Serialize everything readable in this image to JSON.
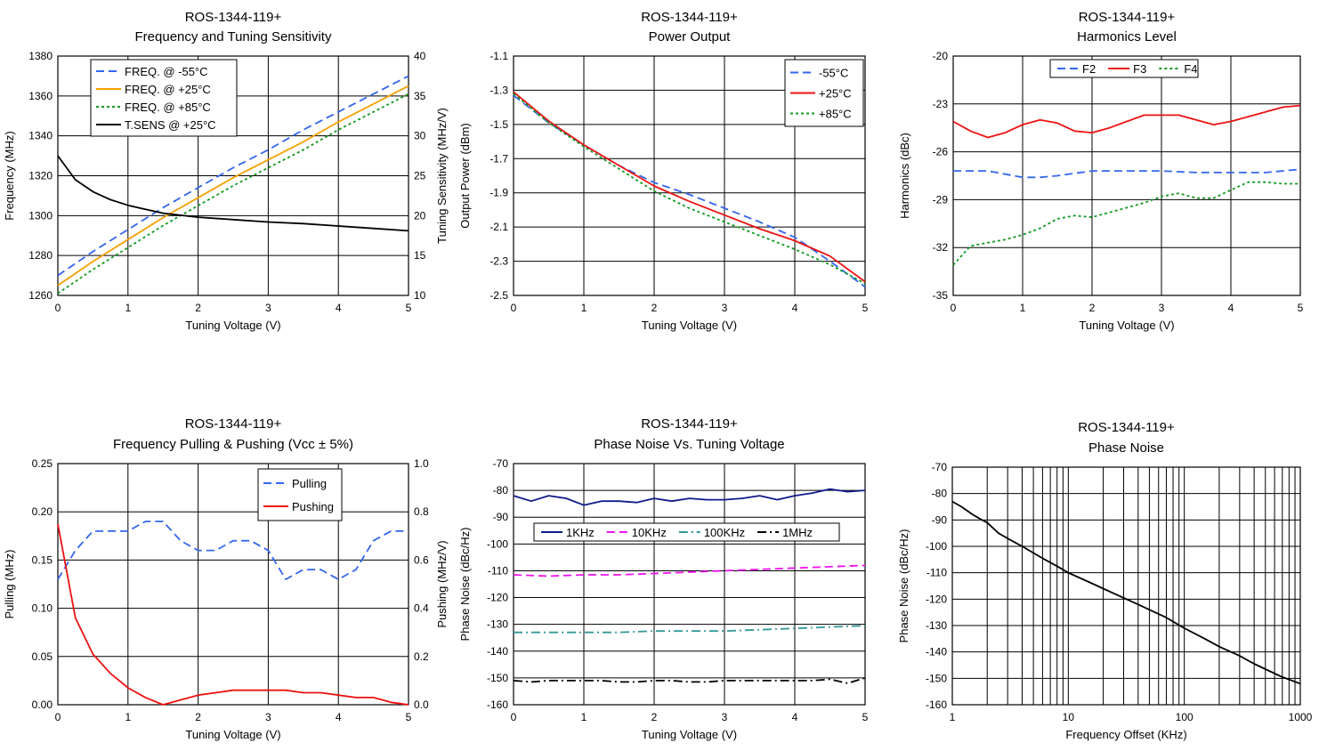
{
  "chart_data": [
    {
      "type": "line",
      "title": "ROS-1344-119+",
      "subtitle": "Frequency and Tuning Sensitivity",
      "xlabel": "Tuning Voltage (V)",
      "ylabel": "Frequency (MHz)",
      "y2label": "Tuning Sensitivity (MHz/V)",
      "xlim": [
        0,
        5
      ],
      "xticks": [
        0,
        1,
        2,
        3,
        4,
        5
      ],
      "ylim": [
        1260,
        1380
      ],
      "yticks": [
        1260,
        1280,
        1300,
        1320,
        1340,
        1360,
        1380
      ],
      "y2lim": [
        10,
        40
      ],
      "y2ticks": [
        10,
        15,
        20,
        25,
        30,
        35,
        40
      ],
      "grid": true,
      "legend_position": "top-left",
      "series": [
        {
          "name": "FREQ. @ -55°C",
          "color": "#3366ee",
          "dash": "dash",
          "axis": "left",
          "x": [
            0,
            0.5,
            1,
            1.5,
            2,
            2.5,
            3,
            3.5,
            4,
            4.5,
            5
          ],
          "y": [
            1270,
            1282,
            1293,
            1304,
            1314,
            1324,
            1333,
            1343,
            1352,
            1361,
            1370
          ]
        },
        {
          "name": "FREQ. @ +25°C",
          "color": "#f5a000",
          "dash": "solid",
          "axis": "left",
          "x": [
            0,
            0.5,
            1,
            1.5,
            2,
            2.5,
            3,
            3.5,
            4,
            4.5,
            5
          ],
          "y": [
            1265,
            1277,
            1288,
            1299,
            1309,
            1319,
            1328,
            1337,
            1347,
            1356,
            1365
          ]
        },
        {
          "name": "FREQ. @ +85°C",
          "color": "#119922",
          "dash": "dot",
          "axis": "left",
          "x": [
            0,
            0.5,
            1,
            1.5,
            2,
            2.5,
            3,
            3.5,
            4,
            4.5,
            5
          ],
          "y": [
            1261,
            1273,
            1284,
            1295,
            1305,
            1315,
            1324,
            1333,
            1343,
            1352,
            1361
          ]
        },
        {
          "name": "T.SENS @ +25°C",
          "color": "#000000",
          "dash": "solid",
          "axis": "right",
          "x": [
            0,
            0.25,
            0.5,
            0.75,
            1,
            1.25,
            1.5,
            2,
            2.5,
            3,
            3.5,
            4,
            4.5,
            5
          ],
          "y": [
            27.5,
            24.5,
            23,
            22,
            21.3,
            20.8,
            20.3,
            19.8,
            19.5,
            19.2,
            19.0,
            18.7,
            18.4,
            18.1
          ]
        }
      ]
    },
    {
      "type": "line",
      "title": "ROS-1344-119+",
      "subtitle": "Power Output",
      "xlabel": "Tuning Voltage (V)",
      "ylabel": "Output Power (dBm)",
      "xlim": [
        0,
        5
      ],
      "xticks": [
        0,
        1,
        2,
        3,
        4,
        5
      ],
      "ylim": [
        -2.5,
        -1.1
      ],
      "yticks": [
        -2.5,
        -2.3,
        -2.1,
        -1.9,
        -1.7,
        -1.5,
        -1.3,
        -1.1
      ],
      "yticklabels": [
        "-2.5",
        "-2.3",
        "-2.1",
        "-1.9",
        "-1.7",
        "-1.5",
        "-1.3",
        "-1.1"
      ],
      "grid": true,
      "legend_position": "top-right",
      "series": [
        {
          "name": "-55°C",
          "color": "#3366ee",
          "dash": "dash",
          "x": [
            0,
            0.5,
            1,
            1.5,
            2,
            2.5,
            3,
            3.5,
            4,
            4.5,
            5
          ],
          "y": [
            -1.33,
            -1.49,
            -1.62,
            -1.74,
            -1.84,
            -1.91,
            -1.99,
            -2.07,
            -2.16,
            -2.3,
            -2.45
          ]
        },
        {
          "name": "+25°C",
          "color": "#ee1111",
          "dash": "solid",
          "x": [
            0,
            0.5,
            1,
            1.5,
            2,
            2.5,
            3,
            3.5,
            4,
            4.5,
            5
          ],
          "y": [
            -1.31,
            -1.48,
            -1.62,
            -1.74,
            -1.86,
            -1.95,
            -2.03,
            -2.11,
            -2.18,
            -2.27,
            -2.42
          ]
        },
        {
          "name": "+85°C",
          "color": "#119922",
          "dash": "dot",
          "x": [
            0,
            0.5,
            1,
            1.5,
            2,
            2.5,
            3,
            3.5,
            4,
            4.5,
            5
          ],
          "y": [
            -1.32,
            -1.49,
            -1.63,
            -1.76,
            -1.89,
            -1.99,
            -2.07,
            -2.15,
            -2.23,
            -2.32,
            -2.43
          ]
        }
      ]
    },
    {
      "type": "line",
      "title": "ROS-1344-119+",
      "subtitle": "Harmonics Level",
      "xlabel": "Tuning Voltage (V)",
      "ylabel": "Harmonics (dBc)",
      "xlim": [
        0,
        5
      ],
      "xticks": [
        0,
        1,
        2,
        3,
        4,
        5
      ],
      "ylim": [
        -35,
        -20
      ],
      "yticks": [
        -35,
        -32,
        -29,
        -26,
        -23,
        -20
      ],
      "grid": true,
      "legend_position": "top",
      "series": [
        {
          "name": "F2",
          "color": "#3366ee",
          "dash": "dash",
          "x": [
            0,
            0.5,
            1,
            1.25,
            1.5,
            2,
            2.5,
            3,
            3.5,
            4,
            4.5,
            5
          ],
          "y": [
            -27.2,
            -27.2,
            -27.6,
            -27.6,
            -27.5,
            -27.2,
            -27.2,
            -27.2,
            -27.3,
            -27.3,
            -27.3,
            -27.1
          ]
        },
        {
          "name": "F3",
          "color": "#ee1111",
          "dash": "solid",
          "x": [
            0,
            0.25,
            0.5,
            0.75,
            1,
            1.25,
            1.5,
            1.75,
            2,
            2.25,
            2.5,
            2.75,
            3,
            3.25,
            3.5,
            3.75,
            4,
            4.25,
            4.5,
            4.75,
            5
          ],
          "y": [
            -24.1,
            -24.7,
            -25.1,
            -24.8,
            -24.3,
            -24.0,
            -24.2,
            -24.7,
            -24.8,
            -24.5,
            -24.1,
            -23.7,
            -23.7,
            -23.7,
            -24.0,
            -24.3,
            -24.1,
            -23.8,
            -23.5,
            -23.2,
            -23.1
          ]
        },
        {
          "name": "F4",
          "color": "#119922",
          "dash": "dot",
          "x": [
            0,
            0.25,
            0.5,
            0.75,
            1,
            1.25,
            1.5,
            1.75,
            2,
            2.25,
            2.5,
            2.75,
            3,
            3.25,
            3.5,
            3.75,
            4,
            4.25,
            4.5,
            4.75,
            5
          ],
          "y": [
            -33.1,
            -31.9,
            -31.7,
            -31.5,
            -31.2,
            -30.8,
            -30.2,
            -30.0,
            -30.1,
            -29.8,
            -29.5,
            -29.2,
            -28.8,
            -28.6,
            -28.9,
            -28.9,
            -28.4,
            -27.9,
            -27.9,
            -28.0,
            -28.0
          ]
        }
      ]
    },
    {
      "type": "line",
      "title": "ROS-1344-119+",
      "subtitle": "Frequency Pulling & Pushing (Vcc ± 5%)",
      "xlabel": "Tuning Voltage (V)",
      "ylabel": "Pulling (MHz)",
      "y2label": "Pushing (MHz/V)",
      "xlim": [
        0,
        5
      ],
      "xticks": [
        0,
        1,
        2,
        3,
        4,
        5
      ],
      "ylim": [
        0,
        0.25
      ],
      "yticks": [
        0,
        0.05,
        0.1,
        0.15,
        0.2,
        0.25
      ],
      "yticklabels": [
        "0.00",
        "0.05",
        "0.10",
        "0.15",
        "0.20",
        "0.25"
      ],
      "y2lim": [
        0,
        1.0
      ],
      "y2ticks": [
        0,
        0.2,
        0.4,
        0.6,
        0.8,
        1.0
      ],
      "y2ticklabels": [
        "0.0",
        "0.2",
        "0.4",
        "0.6",
        "0.8",
        "1.0"
      ],
      "grid": true,
      "legend_position": "top-right",
      "series": [
        {
          "name": "Pulling",
          "color": "#3366ee",
          "dash": "dash",
          "axis": "left",
          "x": [
            0,
            0.25,
            0.5,
            0.75,
            1,
            1.25,
            1.5,
            1.75,
            2,
            2.25,
            2.5,
            2.75,
            3,
            3.25,
            3.5,
            3.75,
            4,
            4.25,
            4.5,
            4.75,
            5
          ],
          "y": [
            0.13,
            0.16,
            0.18,
            0.18,
            0.18,
            0.19,
            0.19,
            0.17,
            0.16,
            0.16,
            0.17,
            0.17,
            0.16,
            0.13,
            0.14,
            0.14,
            0.13,
            0.14,
            0.17,
            0.18,
            0.18
          ]
        },
        {
          "name": "Pushing",
          "color": "#ee1111",
          "dash": "solid",
          "axis": "right",
          "x": [
            0,
            0.25,
            0.5,
            0.75,
            1,
            1.25,
            1.5,
            1.75,
            2,
            2.25,
            2.5,
            2.75,
            3,
            3.25,
            3.5,
            3.75,
            4,
            4.25,
            4.5,
            4.75,
            5
          ],
          "y": [
            0.75,
            0.36,
            0.21,
            0.13,
            0.07,
            0.03,
            0.0,
            0.02,
            0.04,
            0.05,
            0.06,
            0.06,
            0.06,
            0.06,
            0.05,
            0.05,
            0.04,
            0.03,
            0.03,
            0.01,
            0.0
          ]
        }
      ]
    },
    {
      "type": "line",
      "title": "ROS-1344-119+",
      "subtitle": "Phase Noise Vs. Tuning Voltage",
      "xlabel": "Tuning Voltage (V)",
      "ylabel": "Phase Noise (dBc/Hz)",
      "xlim": [
        0,
        5
      ],
      "xticks": [
        0,
        1,
        2,
        3,
        4,
        5
      ],
      "ylim": [
        -160,
        -70
      ],
      "yticks": [
        -160,
        -150,
        -140,
        -130,
        -120,
        -110,
        -100,
        -90,
        -80,
        -70
      ],
      "grid": true,
      "legend_position": "top",
      "series": [
        {
          "name": "1KHz",
          "color": "#111a8a",
          "dash": "solid",
          "x": [
            0,
            0.25,
            0.5,
            0.75,
            1,
            1.25,
            1.5,
            1.75,
            2,
            2.25,
            2.5,
            2.75,
            3,
            3.25,
            3.5,
            3.75,
            4,
            4.25,
            4.5,
            4.75,
            5
          ],
          "y": [
            -82,
            -84,
            -82,
            -83,
            -85.5,
            -84,
            -84,
            -84.5,
            -83,
            -84,
            -83,
            -83.5,
            -83.5,
            -83,
            -82,
            -83.5,
            -82,
            -81,
            -79.5,
            -80.5,
            -80
          ]
        },
        {
          "name": "10KHz",
          "color": "#ee11ee",
          "dash": "dash",
          "x": [
            0,
            0.5,
            1,
            1.5,
            2,
            2.5,
            3,
            3.5,
            4,
            4.5,
            5
          ],
          "y": [
            -111.5,
            -112,
            -111.5,
            -111.5,
            -111,
            -110.5,
            -110,
            -109.5,
            -109,
            -108.5,
            -108
          ]
        },
        {
          "name": "100KHz",
          "color": "#339999",
          "dash": "dashdot",
          "x": [
            0,
            0.5,
            1,
            1.5,
            2,
            2.5,
            3,
            3.5,
            4,
            4.5,
            5
          ],
          "y": [
            -133,
            -133,
            -133,
            -133,
            -132.5,
            -132.5,
            -132.5,
            -132,
            -131.5,
            -131,
            -130.5
          ]
        },
        {
          "name": "1MHz",
          "color": "#000000",
          "dash": "dashdot",
          "x": [
            0,
            0.25,
            0.5,
            0.75,
            1,
            1.25,
            1.5,
            1.75,
            2,
            2.25,
            2.5,
            2.75,
            3,
            3.25,
            3.5,
            3.75,
            4,
            4.25,
            4.5,
            4.75,
            5
          ],
          "y": [
            -151,
            -151.5,
            -151,
            -151,
            -151,
            -151,
            -151.5,
            -151.5,
            -151,
            -151,
            -151.5,
            -151.5,
            -151,
            -151,
            -151,
            -151,
            -151,
            -151,
            -150.5,
            -152,
            -150
          ]
        }
      ]
    },
    {
      "type": "line",
      "title": "ROS-1344-119+",
      "subtitle": "Phase Noise",
      "xlabel": "Frequency Offset (KHz)",
      "ylabel": "Phase Noise (dBc/Hz)",
      "xscale": "log",
      "xlim": [
        1,
        1000
      ],
      "xticks": [
        1,
        10,
        100,
        1000
      ],
      "ylim": [
        -160,
        -70
      ],
      "yticks": [
        -160,
        -150,
        -140,
        -130,
        -120,
        -110,
        -100,
        -90,
        -80,
        -70
      ],
      "grid": true,
      "legend_position": "none",
      "series": [
        {
          "name": "",
          "color": "#000000",
          "dash": "solid",
          "x": [
            1,
            1.2,
            1.5,
            1.8,
            2,
            2.5,
            3,
            4,
            5,
            6,
            8,
            10,
            15,
            20,
            30,
            40,
            50,
            70,
            100,
            150,
            200,
            300,
            400,
            500,
            700,
            1000
          ],
          "y": [
            -83,
            -85,
            -88,
            -90,
            -91,
            -95,
            -97,
            -100,
            -102.5,
            -104.5,
            -107.5,
            -110,
            -113.5,
            -116,
            -119.5,
            -122,
            -124,
            -127,
            -131,
            -135,
            -138,
            -141.5,
            -144.5,
            -146.5,
            -149.5,
            -152
          ]
        }
      ]
    }
  ]
}
